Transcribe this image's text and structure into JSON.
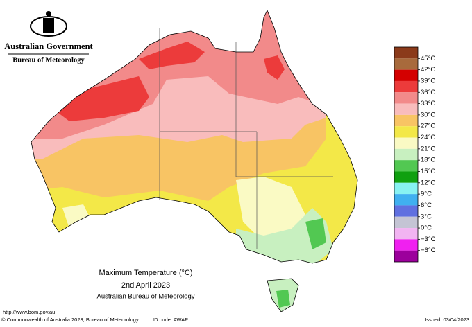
{
  "header": {
    "government": "Australian Government",
    "agency": "Bureau of Meteorology"
  },
  "title": {
    "line1": "Maximum Temperature (°C)",
    "line2": "2nd April 2023",
    "line3": "Australian Bureau of Meteorology"
  },
  "legend": {
    "labels": [
      "45°C",
      "42°C",
      "39°C",
      "36°C",
      "33°C",
      "30°C",
      "27°C",
      "24°C",
      "21°C",
      "18°C",
      "15°C",
      "12°C",
      "9°C",
      "6°C",
      "3°C",
      "0°C",
      "−3°C",
      "−6°C"
    ],
    "colors": [
      "#8b3a1a",
      "#a86a3c",
      "#d40000",
      "#ec3b3b",
      "#f28a8a",
      "#f9bcbc",
      "#f8c464",
      "#f3e848",
      "#fafac4",
      "#c8f0c0",
      "#52c852",
      "#10a010",
      "#88f2f2",
      "#40b0f0",
      "#6070e0",
      "#c4c4d4",
      "#f2b4f2",
      "#f020f0",
      "#9c009c"
    ]
  },
  "footer": {
    "url": "http://www.bom.gov.au",
    "copyright": "© Commonwealth of Australia 2023, Bureau of Meteorology",
    "id_code": "ID code: AWAP",
    "issued": "Issued: 03/04/2023"
  }
}
